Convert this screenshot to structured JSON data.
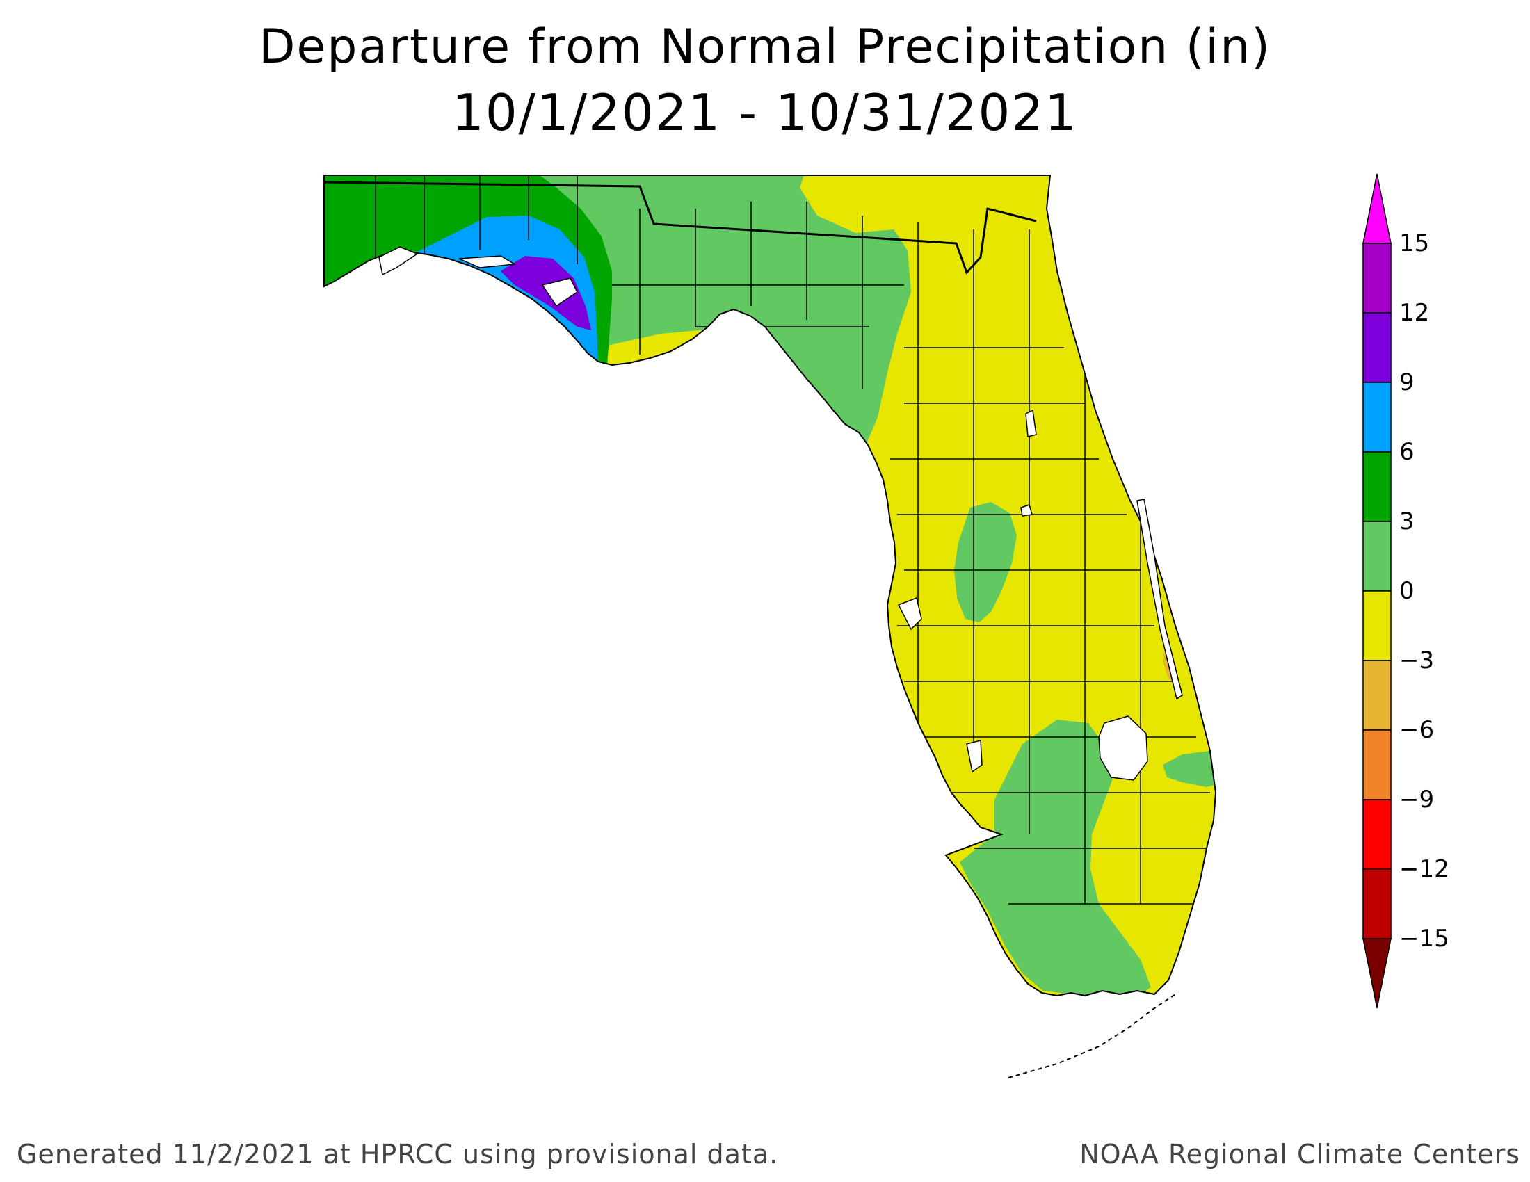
{
  "title": "Departure from Normal Precipitation (in)",
  "date_range": "10/1/2021 - 10/31/2021",
  "legend": {
    "arrow_top_color": "#ff00ff",
    "arrow_bottom_color": "#7a0000",
    "classes": [
      {
        "range": "12 to 15",
        "color": "#a600c8"
      },
      {
        "range": "9 to 12",
        "color": "#7d00dc"
      },
      {
        "range": "6 to 9",
        "color": "#00a0ff"
      },
      {
        "range": "3 to 6",
        "color": "#00a500"
      },
      {
        "range": "0 to 3",
        "color": "#62c862"
      },
      {
        "range": "-3 to 0",
        "color": "#e6e600"
      },
      {
        "range": "-6 to -3",
        "color": "#e6b432"
      },
      {
        "range": "-9 to -6",
        "color": "#f08228"
      },
      {
        "range": "-12 to -9",
        "color": "#ff0000"
      },
      {
        "range": "-15 to -12",
        "color": "#c00000"
      }
    ],
    "tick_labels": [
      "15",
      "12",
      "9",
      "6",
      "3",
      "0",
      "−3",
      "−6",
      "−9",
      "−12",
      "−15"
    ]
  },
  "map_colors": {
    "wet_3_6": "#00a500",
    "wet_0_3": "#62c862",
    "wet_6_9": "#00a0ff",
    "wet_9_12": "#7d00dc",
    "dry_0_3": "#e6e600",
    "dry_3_6": "#e6b432"
  },
  "footer": {
    "left": "Generated 11/2/2021 at HPRCC using provisional data.",
    "right": "NOAA Regional Climate Centers"
  }
}
